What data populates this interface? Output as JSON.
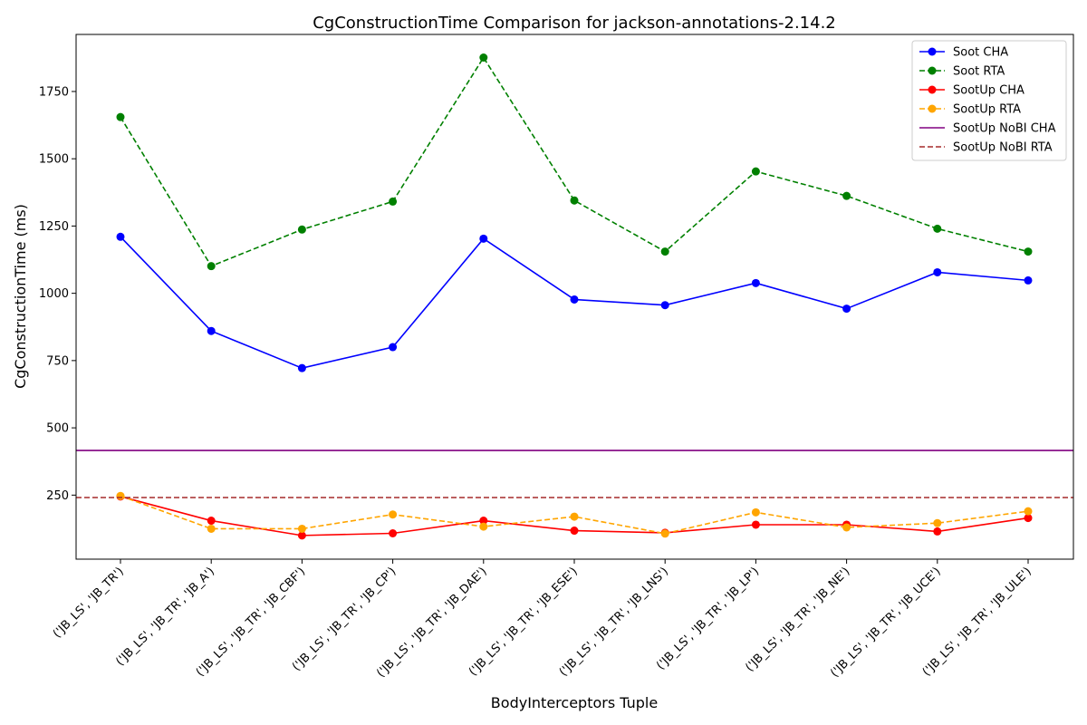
{
  "chart_data": {
    "type": "line",
    "title": "CgConstructionTime Comparison for jackson-annotations-2.14.2",
    "xlabel": "BodyInterceptors Tuple",
    "ylabel": "CgConstructionTime (ms)",
    "ylim": [
      12,
      1962
    ],
    "yticks": [
      250,
      500,
      750,
      1000,
      1250,
      1500,
      1750
    ],
    "grid": false,
    "legend_position": "top-right",
    "categories": [
      "('JB_LS', 'JB_TR')",
      "('JB_LS', 'JB_TR', 'JB_A')",
      "('JB_LS', 'JB_TR', 'JB_CBF')",
      "('JB_LS', 'JB_TR', 'JB_CP')",
      "('JB_LS', 'JB_TR', 'JB_DAE')",
      "('JB_LS', 'JB_TR', 'JB_ESE')",
      "('JB_LS', 'JB_TR', 'JB_LNS')",
      "('JB_LS', 'JB_TR', 'JB_LP')",
      "('JB_LS', 'JB_TR', 'JB_NE')",
      "('JB_LS', 'JB_TR', 'JB_UCE')",
      "('JB_LS', 'JB_TR', 'JB_ULE')"
    ],
    "series": [
      {
        "name": "Soot CHA",
        "color": "#0000ff",
        "style": "solid",
        "marker": true,
        "values": [
          1210,
          860,
          722,
          800,
          1203,
          977,
          956,
          1038,
          943,
          1078,
          1048
        ]
      },
      {
        "name": "Soot RTA",
        "color": "#008000",
        "style": "dashed",
        "marker": true,
        "values": [
          1655,
          1101,
          1237,
          1341,
          1876,
          1345,
          1155,
          1453,
          1362,
          1240,
          1155
        ]
      },
      {
        "name": "SootUp CHA",
        "color": "#ff0000",
        "style": "solid",
        "marker": true,
        "values": [
          245,
          155,
          100,
          108,
          155,
          118,
          110,
          140,
          140,
          115,
          165
        ]
      },
      {
        "name": "SootUp RTA",
        "color": "#ffa500",
        "style": "dashed",
        "marker": true,
        "values": [
          247,
          125,
          125,
          178,
          133,
          170,
          107,
          186,
          130,
          146,
          190
        ]
      },
      {
        "name": "SootUp NoBI CHA",
        "color": "#800080",
        "style": "solid",
        "marker": false,
        "hline": 416
      },
      {
        "name": "SootUp NoBI RTA",
        "color": "#a52a2a",
        "style": "dashed",
        "marker": false,
        "hline": 241
      }
    ]
  }
}
